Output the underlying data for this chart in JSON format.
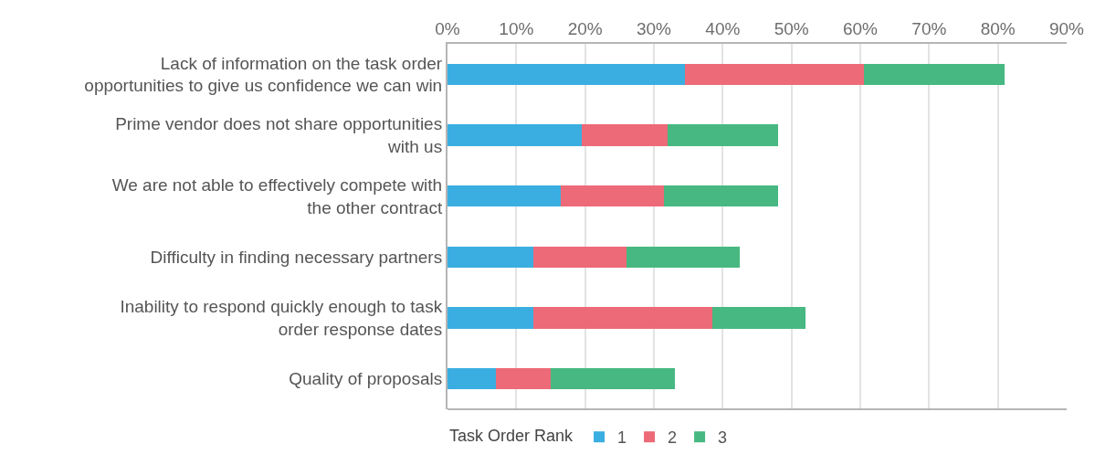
{
  "chart_data": {
    "type": "bar",
    "orientation": "horizontal",
    "stacked": true,
    "categories": [
      "Lack of information on the task order\nopportunities to give us confidence we can win",
      "Prime vendor does not share opportunities\nwith us",
      "We are not able to effectively compete with\nthe other contract",
      "Difficulty in finding necessary partners",
      "Inability to respond quickly enough to task\norder response dates",
      "Quality of proposals"
    ],
    "series": [
      {
        "name": "1",
        "color": "#3aaee0",
        "values": [
          34.5,
          19.5,
          16.5,
          12.5,
          12.5,
          7
        ]
      },
      {
        "name": "2",
        "color": "#ed6a78",
        "values": [
          26,
          12.5,
          15,
          13.5,
          26,
          8
        ]
      },
      {
        "name": "3",
        "color": "#47b881",
        "values": [
          20.5,
          16,
          16.5,
          16.5,
          13.5,
          18
        ]
      }
    ],
    "xlim": [
      0,
      90
    ],
    "xticks": [
      {
        "value": 0,
        "label": "0%"
      },
      {
        "value": 10,
        "label": "10%"
      },
      {
        "value": 20,
        "label": "20%"
      },
      {
        "value": 30,
        "label": "30%"
      },
      {
        "value": 40,
        "label": "40%"
      },
      {
        "value": 50,
        "label": "50%"
      },
      {
        "value": 60,
        "label": "60%"
      },
      {
        "value": 70,
        "label": "70%"
      },
      {
        "value": 80,
        "label": "80%"
      },
      {
        "value": 90,
        "label": "90%"
      }
    ],
    "grid": "x",
    "legend": "bottom",
    "legend_title": "Task Order Rank"
  }
}
